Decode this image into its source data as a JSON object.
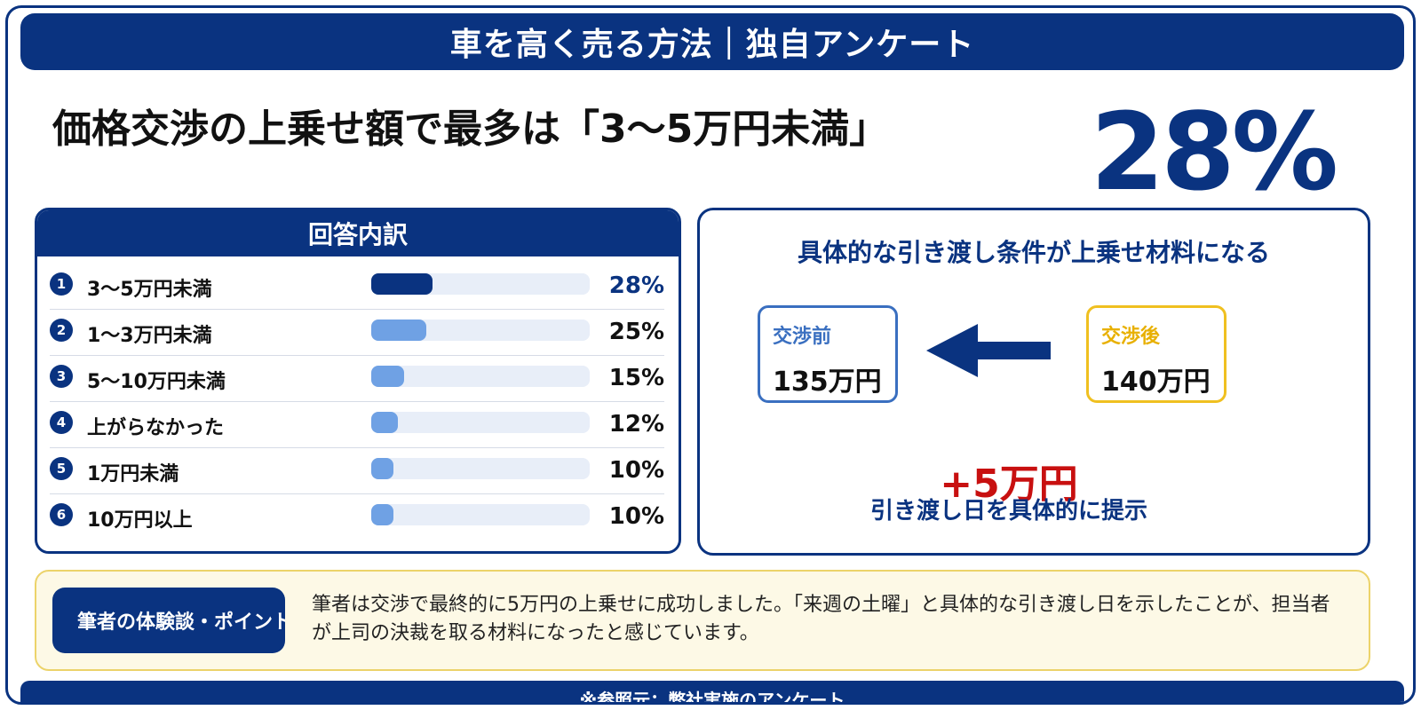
{
  "header": {
    "title": "車を高く売る方法｜独自アンケート"
  },
  "headline": "価格交渉の上乗せ額で最多は「3〜5万円未満」",
  "big_percent": "28%",
  "breakdown": {
    "title": "回答内訳"
  },
  "chart_data": {
    "type": "bar",
    "orientation": "horizontal",
    "title": "回答内訳",
    "categories": [
      "3〜5万円未満",
      "1〜3万円未満",
      "5〜10万円未満",
      "上がらなかった",
      "1万円未満",
      "10万円以上"
    ],
    "values": [
      28,
      25,
      15,
      12,
      10,
      10
    ],
    "value_labels": [
      "28%",
      "25%",
      "15%",
      "12%",
      "10%",
      "10%"
    ],
    "ranks": [
      "1",
      "2",
      "3",
      "4",
      "5",
      "6"
    ],
    "xlim": [
      0,
      100
    ],
    "colors": {
      "top": "#0a3380",
      "rest": "#6fa1e4",
      "track": "#e8eef8"
    }
  },
  "example": {
    "title": "具体的な引き渡し条件が上乗せ材料になる",
    "before_label": "交渉前",
    "before_value": "135万円",
    "after_label": "交渉後",
    "after_value": "140万円",
    "arrow_icon": "left-arrow-icon",
    "increase": "+5万円",
    "increase_note": "引き渡し日を具体的に提示"
  },
  "point": {
    "label": "筆者の体験談・ポイント",
    "text": "筆者は交渉で最終的に5万円の上乗せに成功しました。「来週の土曜」と具体的な引き渡し日を示したことが、担当者が上司の決裁を取る材料になったと感じています。"
  },
  "footer": {
    "source": "※参照元：弊社実施のアンケート"
  },
  "colors": {
    "brand": "#0a3380",
    "accent_red": "#c81010",
    "accent_yellow": "#f0c020",
    "point_bg": "#fdf9e6"
  }
}
